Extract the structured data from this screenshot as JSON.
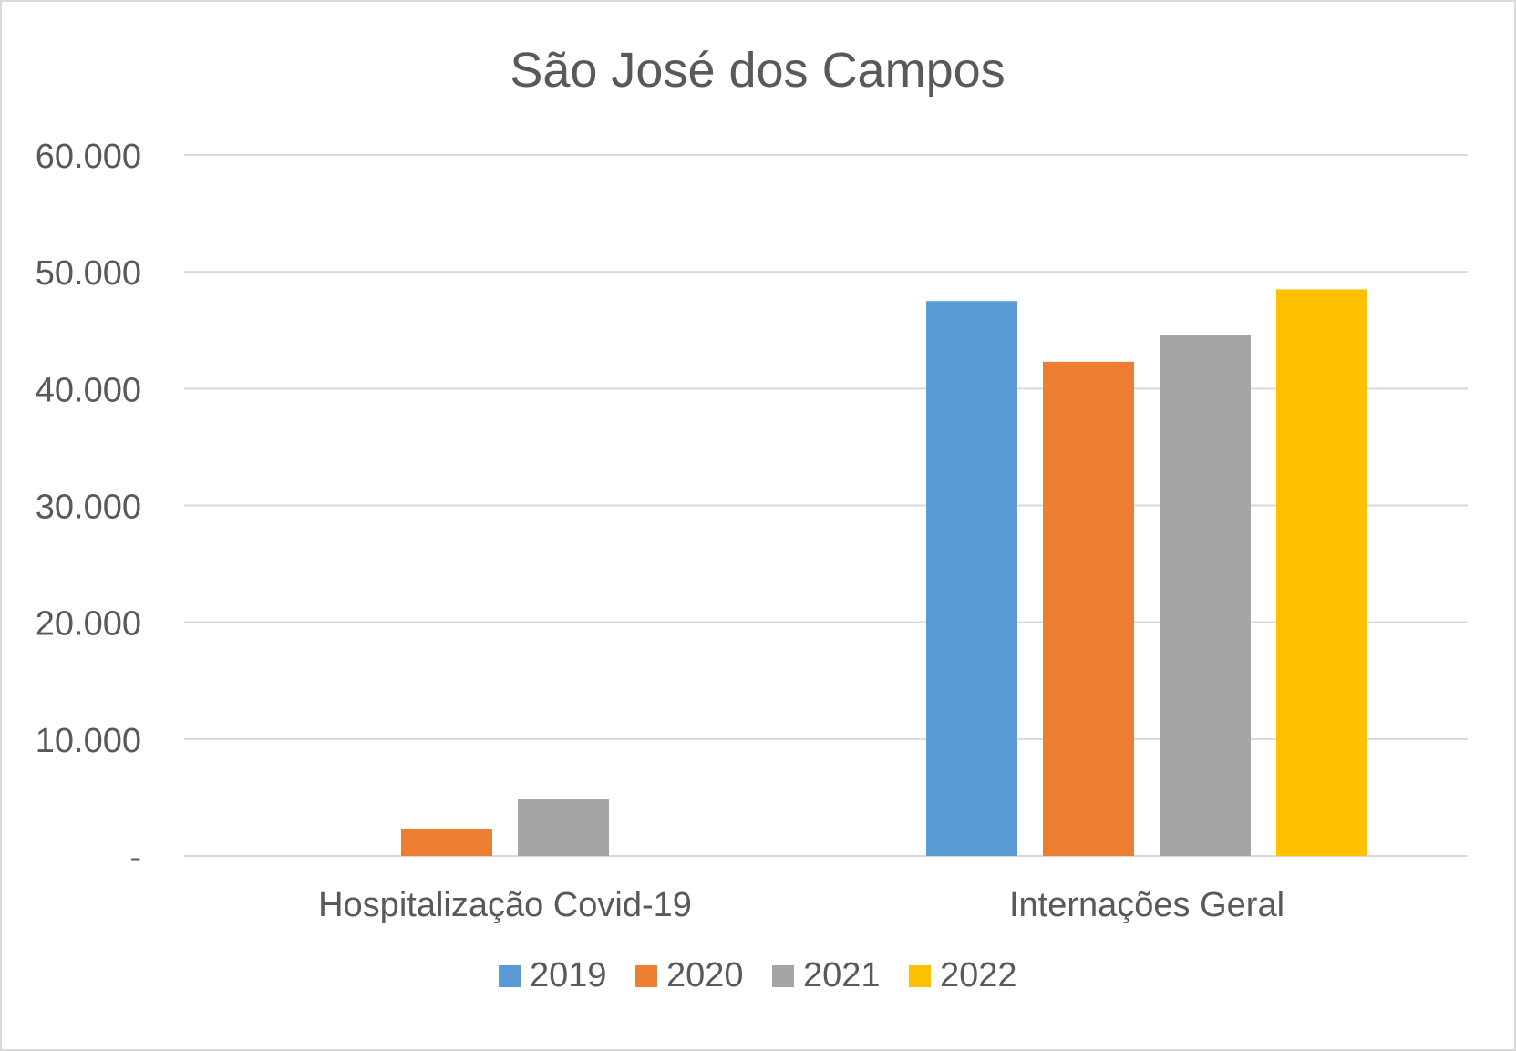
{
  "chart_data": {
    "type": "bar",
    "title": "São José dos Campos",
    "categories": [
      "Hospitalização Covid-19",
      "Internações Geral"
    ],
    "series": [
      {
        "name": "2019",
        "color": "#5b9bd5",
        "values": [
          0,
          47500
        ]
      },
      {
        "name": "2020",
        "color": "#ed7d31",
        "values": [
          2300,
          42300
        ]
      },
      {
        "name": "2021",
        "color": "#a5a5a5",
        "values": [
          4900,
          44600
        ]
      },
      {
        "name": "2022",
        "color": "#ffc000",
        "values": [
          0,
          48500
        ]
      }
    ],
    "ylim": [
      0,
      60000
    ],
    "y_ticks": [
      {
        "value": 0,
        "label": "-"
      },
      {
        "value": 10000,
        "label": "10.000"
      },
      {
        "value": 20000,
        "label": "20.000"
      },
      {
        "value": 30000,
        "label": "30.000"
      },
      {
        "value": 40000,
        "label": "40.000"
      },
      {
        "value": 50000,
        "label": "50.000"
      },
      {
        "value": 60000,
        "label": "60.000"
      }
    ],
    "grid": true,
    "legend_position": "bottom",
    "gridline_color": "#d9d9d9"
  }
}
